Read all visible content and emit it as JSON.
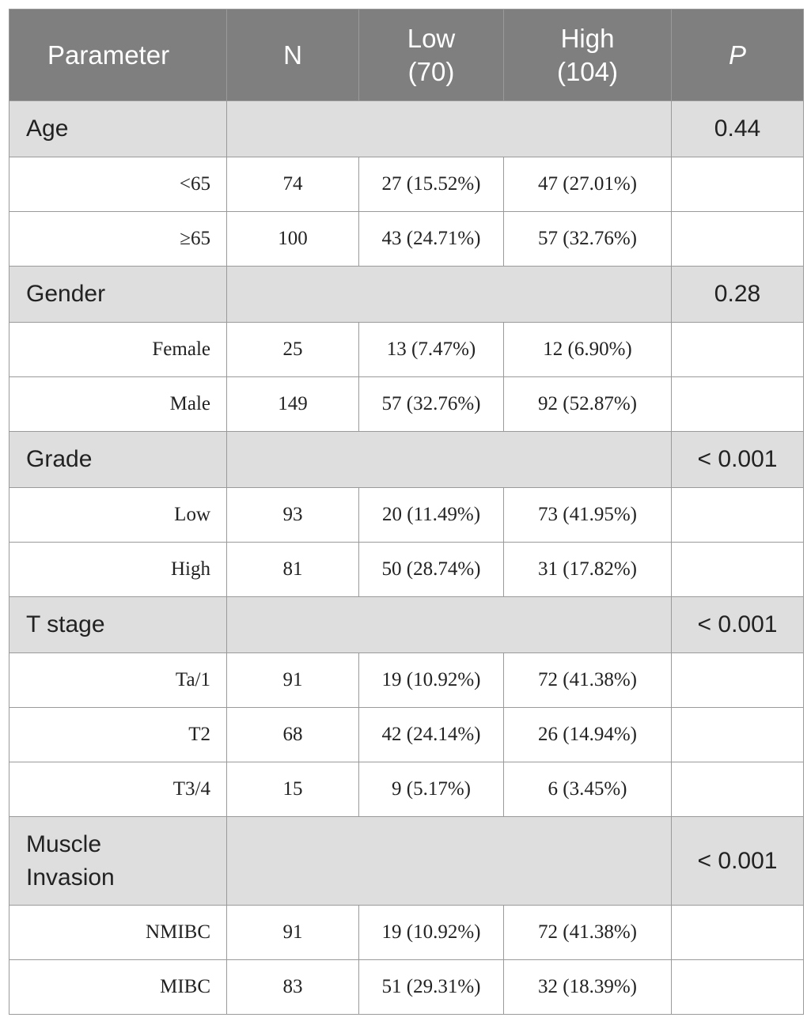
{
  "header": {
    "parameter": "Parameter",
    "n": "N",
    "low_line1": "Low",
    "low_line2": "(70)",
    "high_line1": "High",
    "high_line2": "(104)",
    "p": "P"
  },
  "groups": [
    {
      "name": "Age",
      "p": "0.44",
      "rows": [
        {
          "label": "<65",
          "n": "74",
          "low": "27 (15.52%)",
          "high": "47 (27.01%)"
        },
        {
          "label": "≥65",
          "n": "100",
          "low": "43 (24.71%)",
          "high": "57 (32.76%)"
        }
      ]
    },
    {
      "name": "Gender",
      "p": "0.28",
      "rows": [
        {
          "label": "Female",
          "n": "25",
          "low": "13 (7.47%)",
          "high": "12 (6.90%)"
        },
        {
          "label": "Male",
          "n": "149",
          "low": "57 (32.76%)",
          "high": "92 (52.87%)"
        }
      ]
    },
    {
      "name": "Grade",
      "p": "< 0.001",
      "rows": [
        {
          "label": "Low",
          "n": "93",
          "low": "20 (11.49%)",
          "high": "73 (41.95%)"
        },
        {
          "label": "High",
          "n": "81",
          "low": "50 (28.74%)",
          "high": "31 (17.82%)"
        }
      ]
    },
    {
      "name": "T stage",
      "p": "< 0.001",
      "rows": [
        {
          "label": "Ta/1",
          "n": "91",
          "low": "19 (10.92%)",
          "high": "72 (41.38%)"
        },
        {
          "label": "T2",
          "n": "68",
          "low": "42 (24.14%)",
          "high": "26 (14.94%)"
        },
        {
          "label": "T3/4",
          "n": "15",
          "low": "9 (5.17%)",
          "high": "6 (3.45%)"
        }
      ]
    },
    {
      "name_line1": "Muscle",
      "name_line2": "Invasion",
      "p": "< 0.001",
      "rows": [
        {
          "label": "NMIBC",
          "n": "91",
          "low": "19 (10.92%)",
          "high": "72 (41.38%)"
        },
        {
          "label": "MIBC",
          "n": "83",
          "low": "51 (29.31%)",
          "high": "32 (18.39%)"
        }
      ]
    }
  ]
}
